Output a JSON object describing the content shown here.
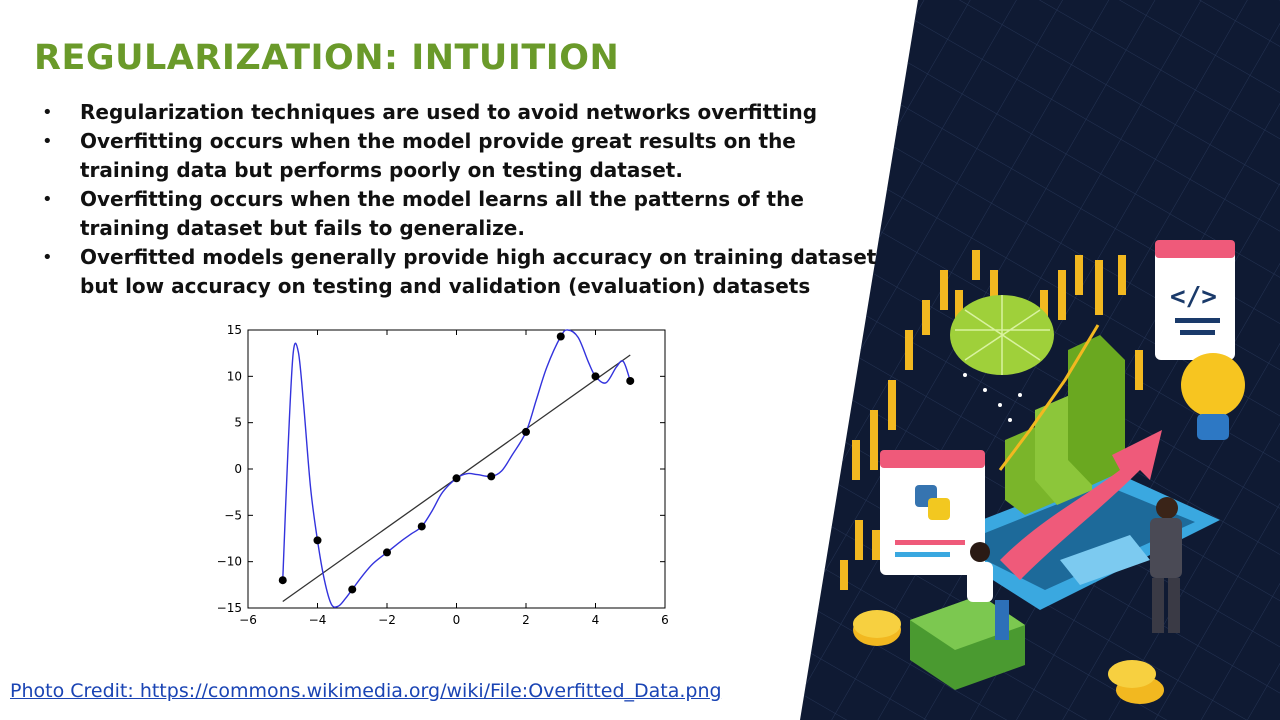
{
  "slide": {
    "title": "REGULARIZATION: INTUITION",
    "bullets": [
      "Regularization techniques are used to avoid networks overfitting",
      "Overfitting occurs when the model provide great results on the training data but performs poorly on testing dataset.",
      "Overfitting occurs when the model learns all the patterns of the training dataset but fails to generalize.",
      "Overfitted models generally provide high accuracy on training dataset but low accuracy on testing and validation (evaluation) datasets"
    ],
    "bullet_symbol": "•",
    "credit": "Photo Credit: https://commons.wikimedia.org/wiki/File:Overfitted_Data.png",
    "title_color": "#6a9a2a",
    "link_color": "#1a44b4"
  },
  "chart_data": {
    "type": "scatter",
    "title": "",
    "xlabel": "",
    "ylabel": "",
    "xlim": [
      -6,
      6
    ],
    "ylim": [
      -15,
      15
    ],
    "x_ticks": [
      -6,
      -4,
      -2,
      0,
      2,
      4,
      6
    ],
    "y_ticks": [
      15,
      10,
      5,
      0,
      -5,
      -10,
      -15
    ],
    "grid": false,
    "points": {
      "x": [
        -5,
        -4,
        -3,
        -2,
        -1,
        0,
        1,
        2,
        3,
        4,
        5
      ],
      "y": [
        -12,
        -7.7,
        -13,
        -9,
        -6.2,
        -1,
        -0.8,
        4,
        14.3,
        10,
        9.5
      ]
    },
    "linear_fit": {
      "x": [
        -5,
        5
      ],
      "y": [
        -14.3,
        12.3
      ],
      "color": "#333333"
    },
    "overfit_curve": {
      "color": "#3333dd",
      "x": [
        -5,
        -4.85,
        -4.7,
        -4.55,
        -4.4,
        -4.2,
        -4,
        -3.8,
        -3.6,
        -3.4,
        -3.2,
        -3,
        -2.7,
        -2.4,
        -2,
        -1.6,
        -1.3,
        -1,
        -0.7,
        -0.4,
        0,
        0.3,
        0.6,
        1,
        1.3,
        1.6,
        2,
        2.3,
        2.6,
        3,
        3.2,
        3.5,
        3.8,
        4,
        4.3,
        4.6,
        4.8,
        5
      ],
      "y": [
        -12,
        2,
        12.5,
        12.6,
        7,
        -2,
        -7.7,
        -12,
        -14.6,
        -14.8,
        -14,
        -13,
        -11.5,
        -10.2,
        -9,
        -7.8,
        -7,
        -6.2,
        -4.5,
        -2.5,
        -1,
        -0.5,
        -0.6,
        -0.8,
        -0.2,
        1.5,
        4,
        7.5,
        11,
        14.3,
        15,
        14.2,
        11.5,
        10,
        9.3,
        11,
        11.6,
        9.5
      ]
    }
  }
}
